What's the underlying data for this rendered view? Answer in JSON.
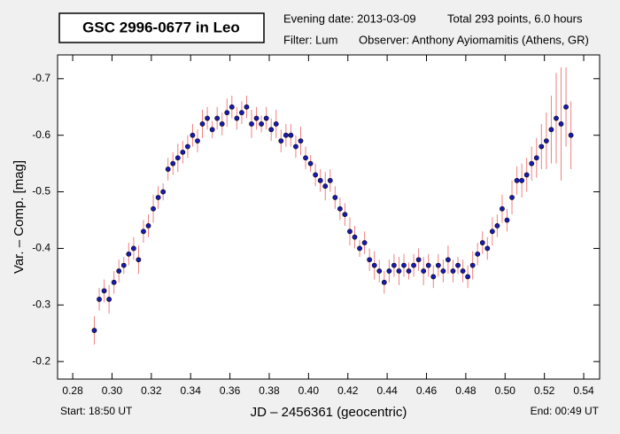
{
  "chart_data": {
    "type": "scatter",
    "title": "GSC 2996-0677 in Leo",
    "evening_date": "Evening date: 2013-03-09",
    "total": "Total 293 points, 6.0 hours",
    "filter": "Filter: Lum",
    "observer": "Observer: Anthony Ayiomamitis (Athens, GR)",
    "ylabel": "Var. – Comp. [mag]",
    "xlabel": "JD – 2456361  (geocentric)",
    "start": "Start: 18:50 UT",
    "end": "End: 00:49 UT",
    "marker_color": "#1a1ab4",
    "error_color": "#f08080",
    "xlim": [
      0.2723,
      0.5481
    ],
    "ylim": [
      -0.169,
      -0.742
    ],
    "xticks": [
      0.28,
      {
        "value": 0.3,
        "label": "0.30"
      },
      0.32,
      0.34,
      0.36,
      0.38,
      {
        "value": 0.4,
        "label": "0.40"
      },
      0.42,
      0.44,
      0.46,
      0.48,
      {
        "value": 0.5,
        "label": "0.50"
      },
      0.52,
      0.54
    ],
    "yticks": [
      -0.2,
      -0.3,
      -0.4,
      -0.5,
      -0.6,
      -0.7
    ],
    "x": [
      0.291,
      0.2935,
      0.296,
      0.2985,
      0.301,
      0.3035,
      0.306,
      0.3085,
      0.311,
      0.3135,
      0.316,
      0.3185,
      0.321,
      0.3235,
      0.326,
      0.3285,
      0.331,
      0.3335,
      0.336,
      0.3385,
      0.341,
      0.3435,
      0.346,
      0.3485,
      0.351,
      0.3535,
      0.356,
      0.3585,
      0.361,
      0.3635,
      0.366,
      0.3685,
      0.371,
      0.3735,
      0.376,
      0.3785,
      0.381,
      0.3835,
      0.386,
      0.3885,
      0.391,
      0.3935,
      0.396,
      0.3985,
      0.401,
      0.4035,
      0.406,
      0.4085,
      0.411,
      0.4135,
      0.416,
      0.4185,
      0.421,
      0.4235,
      0.426,
      0.4285,
      0.431,
      0.4335,
      0.436,
      0.4385,
      0.441,
      0.4435,
      0.446,
      0.4485,
      0.451,
      0.4535,
      0.456,
      0.4585,
      0.461,
      0.4635,
      0.466,
      0.4685,
      0.471,
      0.4735,
      0.476,
      0.4785,
      0.481,
      0.4835,
      0.486,
      0.4885,
      0.491,
      0.4935,
      0.496,
      0.4985,
      0.501,
      0.5035,
      0.506,
      0.5085,
      0.511,
      0.5135,
      0.516,
      0.5185,
      0.521,
      0.5235,
      0.526,
      0.5285,
      0.531,
      0.5335
    ],
    "values": [
      -0.255,
      -0.31,
      -0.325,
      -0.31,
      -0.34,
      -0.36,
      -0.37,
      -0.39,
      -0.4,
      -0.38,
      -0.43,
      -0.44,
      -0.47,
      -0.49,
      -0.5,
      -0.54,
      -0.55,
      -0.56,
      -0.57,
      -0.58,
      -0.6,
      -0.59,
      -0.62,
      -0.63,
      -0.61,
      -0.63,
      -0.62,
      -0.64,
      -0.65,
      -0.63,
      -0.64,
      -0.65,
      -0.62,
      -0.63,
      -0.62,
      -0.63,
      -0.61,
      -0.62,
      -0.59,
      -0.6,
      -0.6,
      -0.58,
      -0.59,
      -0.56,
      -0.55,
      -0.53,
      -0.52,
      -0.51,
      -0.52,
      -0.49,
      -0.47,
      -0.46,
      -0.43,
      -0.42,
      -0.4,
      -0.41,
      -0.38,
      -0.37,
      -0.36,
      -0.34,
      -0.36,
      -0.37,
      -0.36,
      -0.37,
      -0.36,
      -0.37,
      -0.38,
      -0.36,
      -0.37,
      -0.35,
      -0.37,
      -0.36,
      -0.38,
      -0.36,
      -0.37,
      -0.36,
      -0.35,
      -0.37,
      -0.39,
      -0.41,
      -0.4,
      -0.43,
      -0.44,
      -0.47,
      -0.45,
      -0.49,
      -0.52,
      -0.52,
      -0.53,
      -0.55,
      -0.56,
      -0.58,
      -0.59,
      -0.61,
      -0.63,
      -0.62,
      -0.65,
      -0.6
    ],
    "errors": [
      0.025,
      0.02,
      0.02,
      0.025,
      0.02,
      0.02,
      0.015,
      0.02,
      0.02,
      0.025,
      0.02,
      0.02,
      0.025,
      0.02,
      0.015,
      0.02,
      0.02,
      0.025,
      0.02,
      0.02,
      0.02,
      0.02,
      0.025,
      0.02,
      0.015,
      0.02,
      0.02,
      0.025,
      0.02,
      0.02,
      0.02,
      0.02,
      0.025,
      0.02,
      0.015,
      0.02,
      0.02,
      0.025,
      0.02,
      0.02,
      0.02,
      0.02,
      0.025,
      0.02,
      0.015,
      0.02,
      0.02,
      0.025,
      0.02,
      0.02,
      0.02,
      0.02,
      0.025,
      0.02,
      0.015,
      0.02,
      0.02,
      0.025,
      0.02,
      0.02,
      0.02,
      0.02,
      0.025,
      0.02,
      0.015,
      0.02,
      0.02,
      0.025,
      0.02,
      0.02,
      0.02,
      0.02,
      0.025,
      0.02,
      0.015,
      0.02,
      0.02,
      0.025,
      0.02,
      0.02,
      0.02,
      0.025,
      0.02,
      0.025,
      0.02,
      0.03,
      0.025,
      0.03,
      0.03,
      0.03,
      0.035,
      0.04,
      0.05,
      0.06,
      0.08,
      0.1,
      0.07,
      0.06
    ]
  }
}
